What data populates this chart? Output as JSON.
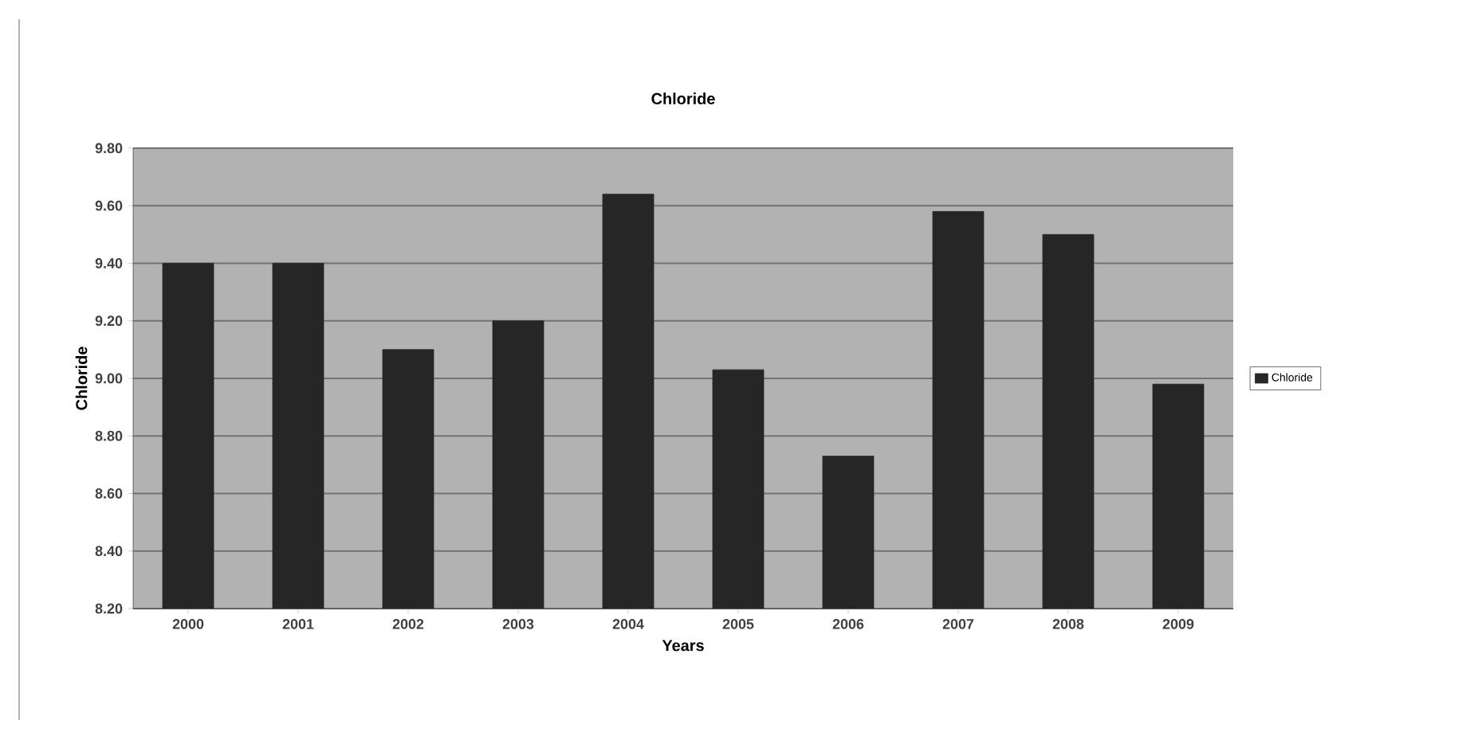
{
  "chart_data": {
    "type": "bar",
    "title": "Chloride",
    "xlabel": "Years",
    "ylabel": "Chloride",
    "categories": [
      "2000",
      "2001",
      "2002",
      "2003",
      "2004",
      "2005",
      "2006",
      "2007",
      "2008",
      "2009"
    ],
    "series": [
      {
        "name": "Chloride",
        "color": "#262626",
        "values": [
          9.4,
          9.4,
          9.1,
          9.2,
          9.64,
          9.03,
          8.73,
          9.58,
          9.5,
          8.98
        ]
      }
    ],
    "ylim": [
      8.2,
      9.8
    ],
    "yticks": [
      {
        "value": 8.2,
        "label": "8.20"
      },
      {
        "value": 8.4,
        "label": "8.40"
      },
      {
        "value": 8.6,
        "label": "8.60"
      },
      {
        "value": 8.8,
        "label": "8.80"
      },
      {
        "value": 9.0,
        "label": "9.00"
      },
      {
        "value": 9.2,
        "label": "9.20"
      },
      {
        "value": 9.4,
        "label": "9.40"
      },
      {
        "value": 9.6,
        "label": "9.60"
      },
      {
        "value": 9.8,
        "label": "9.80"
      }
    ],
    "grid": "y",
    "legend": "right"
  }
}
